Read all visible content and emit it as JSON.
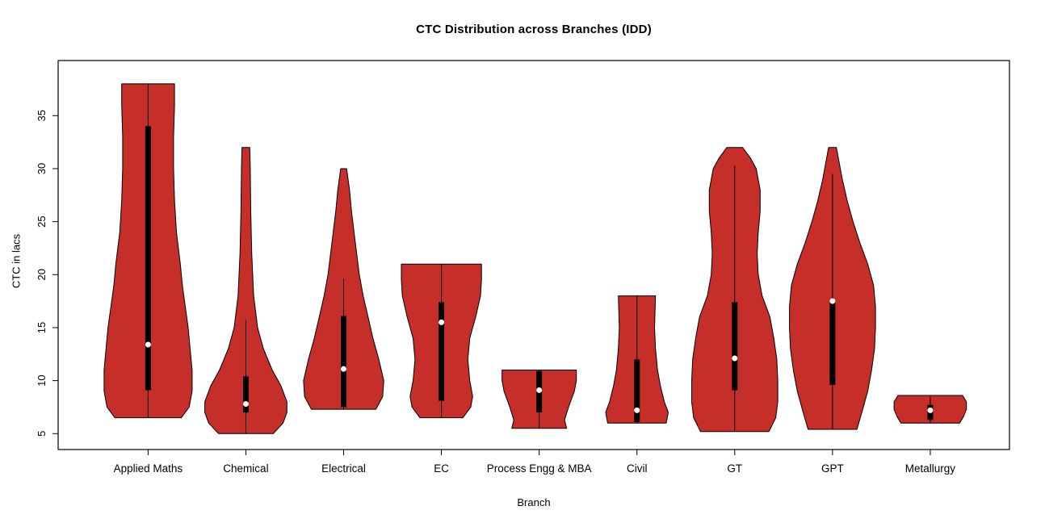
{
  "chart_data": {
    "type": "violin",
    "title": "CTC Distribution across Branches (IDD)",
    "xlabel": "Branch",
    "ylabel": "CTC in lacs",
    "ylim": [
      3.5,
      40.2
    ],
    "xlim": [
      0.08,
      9.81
    ],
    "yticks": [
      5,
      10,
      15,
      20,
      25,
      30,
      35
    ],
    "grid": false,
    "legend": "none",
    "fill_color": "#c62e2a",
    "stroke_color": "#000000",
    "median_dot_color": "#ffffff",
    "categories": [
      "Applied Maths",
      "Chemical",
      "Electrical",
      "EC",
      "Process Engg & MBA",
      "Civil",
      "GT",
      "GPT",
      "Metallurgy"
    ],
    "violins": [
      {
        "name": "Applied Maths",
        "min": 6.5,
        "max": 38,
        "box": {
          "whisker_low": 6.5,
          "whisker_high": 38,
          "q1": 9.1,
          "q3": 34,
          "median": 13.4
        },
        "profile": [
          [
            6.5,
            0.34
          ],
          [
            7.5,
            0.42
          ],
          [
            9,
            0.45
          ],
          [
            11,
            0.45
          ],
          [
            13,
            0.43
          ],
          [
            15,
            0.41
          ],
          [
            17,
            0.38
          ],
          [
            19,
            0.35
          ],
          [
            21,
            0.33
          ],
          [
            24,
            0.29
          ],
          [
            27,
            0.27
          ],
          [
            30,
            0.26
          ],
          [
            33,
            0.26
          ],
          [
            36,
            0.27
          ],
          [
            38,
            0.27
          ]
        ]
      },
      {
        "name": "Chemical",
        "min": 5,
        "max": 32,
        "box": {
          "whisker_low": 5,
          "whisker_high": 15.7,
          "q1": 7,
          "q3": 10.4,
          "median": 7.8
        },
        "profile": [
          [
            5,
            0.28
          ],
          [
            6,
            0.38
          ],
          [
            7,
            0.42
          ],
          [
            8,
            0.42
          ],
          [
            9.5,
            0.36
          ],
          [
            11,
            0.27
          ],
          [
            13,
            0.18
          ],
          [
            15,
            0.12
          ],
          [
            18,
            0.08
          ],
          [
            22,
            0.06
          ],
          [
            26,
            0.05
          ],
          [
            30,
            0.045
          ],
          [
            32,
            0.04
          ]
        ]
      },
      {
        "name": "Electrical",
        "min": 7.3,
        "max": 30,
        "box": {
          "whisker_low": 7.3,
          "whisker_high": 19.6,
          "q1": 7.5,
          "q3": 16.1,
          "median": 11.1
        },
        "profile": [
          [
            7.3,
            0.33
          ],
          [
            8.5,
            0.4
          ],
          [
            10,
            0.41
          ],
          [
            12,
            0.36
          ],
          [
            14,
            0.3
          ],
          [
            16,
            0.25
          ],
          [
            18,
            0.2
          ],
          [
            20,
            0.16
          ],
          [
            23,
            0.12
          ],
          [
            26,
            0.08
          ],
          [
            28,
            0.06
          ],
          [
            30,
            0.03
          ]
        ]
      },
      {
        "name": "EC",
        "min": 6.5,
        "max": 21,
        "box": {
          "whisker_low": 6.5,
          "whisker_high": 21,
          "q1": 8.1,
          "q3": 17.4,
          "median": 15.5
        },
        "profile": [
          [
            6.5,
            0.22
          ],
          [
            7.5,
            0.3
          ],
          [
            8.5,
            0.32
          ],
          [
            10,
            0.29
          ],
          [
            12,
            0.27
          ],
          [
            14,
            0.29
          ],
          [
            16,
            0.35
          ],
          [
            18,
            0.4
          ],
          [
            19.5,
            0.41
          ],
          [
            21,
            0.41
          ]
        ]
      },
      {
        "name": "Process Engg & MBA",
        "min": 5.5,
        "max": 11,
        "box": {
          "whisker_low": 5.5,
          "whisker_high": 11,
          "q1": 7,
          "q3": 10.9,
          "median": 9.1
        },
        "profile": [
          [
            5.5,
            0.28
          ],
          [
            6.3,
            0.26
          ],
          [
            7.5,
            0.3
          ],
          [
            9,
            0.36
          ],
          [
            10,
            0.38
          ],
          [
            11,
            0.38
          ]
        ]
      },
      {
        "name": "Civil",
        "min": 6,
        "max": 18,
        "box": {
          "whisker_low": 6,
          "whisker_high": 18,
          "q1": 6.1,
          "q3": 12,
          "median": 7.2
        },
        "profile": [
          [
            6,
            0.3
          ],
          [
            7,
            0.32
          ],
          [
            8,
            0.28
          ],
          [
            9.5,
            0.24
          ],
          [
            11,
            0.21
          ],
          [
            13,
            0.19
          ],
          [
            15,
            0.18
          ],
          [
            16.5,
            0.185
          ],
          [
            18,
            0.19
          ]
        ]
      },
      {
        "name": "GT",
        "min": 5.2,
        "max": 32,
        "box": {
          "whisker_low": 5.2,
          "whisker_high": 30.3,
          "q1": 9.1,
          "q3": 17.4,
          "median": 12.1
        },
        "profile": [
          [
            5.2,
            0.35
          ],
          [
            6.5,
            0.42
          ],
          [
            8,
            0.44
          ],
          [
            10,
            0.44
          ],
          [
            12,
            0.43
          ],
          [
            14,
            0.4
          ],
          [
            16,
            0.36
          ],
          [
            18,
            0.28
          ],
          [
            20,
            0.24
          ],
          [
            22,
            0.23
          ],
          [
            24,
            0.24
          ],
          [
            26,
            0.26
          ],
          [
            28,
            0.26
          ],
          [
            30,
            0.22
          ],
          [
            31,
            0.16
          ],
          [
            32,
            0.08
          ]
        ]
      },
      {
        "name": "GPT",
        "min": 5.4,
        "max": 32,
        "box": {
          "whisker_low": 5.4,
          "whisker_high": 29.5,
          "q1": 9.6,
          "q3": 17.5,
          "median": 17.5
        },
        "profile": [
          [
            5.4,
            0.25
          ],
          [
            7,
            0.3
          ],
          [
            9,
            0.36
          ],
          [
            11,
            0.4
          ],
          [
            13,
            0.43
          ],
          [
            15,
            0.44
          ],
          [
            17,
            0.44
          ],
          [
            19,
            0.42
          ],
          [
            21,
            0.36
          ],
          [
            23,
            0.28
          ],
          [
            25,
            0.21
          ],
          [
            27,
            0.15
          ],
          [
            29,
            0.1
          ],
          [
            31,
            0.06
          ],
          [
            32,
            0.04
          ]
        ]
      },
      {
        "name": "Metallurgy",
        "min": 6,
        "max": 8.6,
        "box": {
          "whisker_low": 6,
          "whisker_high": 8.5,
          "q1": 6.3,
          "q3": 7.7,
          "median": 7.2
        },
        "profile": [
          [
            6,
            0.3
          ],
          [
            6.6,
            0.34
          ],
          [
            7.3,
            0.37
          ],
          [
            8,
            0.37
          ],
          [
            8.6,
            0.33
          ]
        ]
      }
    ]
  }
}
